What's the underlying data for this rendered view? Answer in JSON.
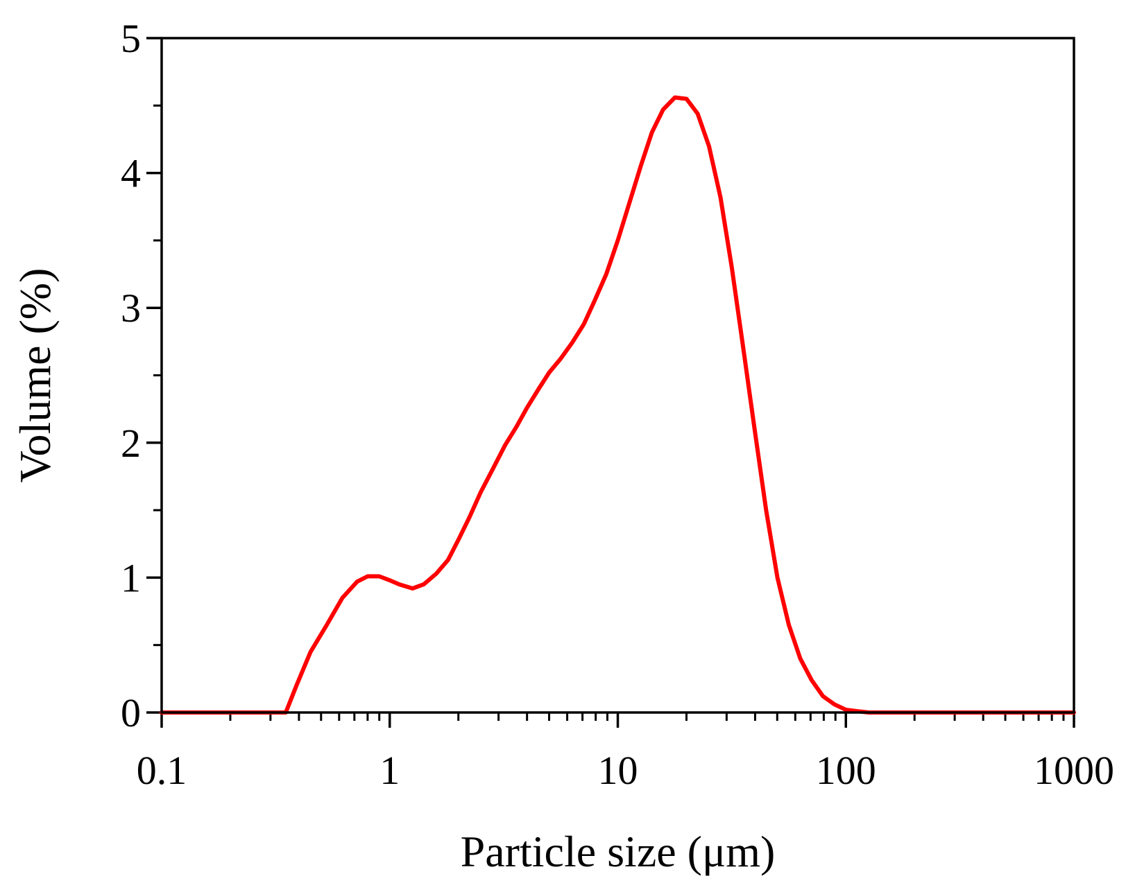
{
  "chart_data": {
    "type": "line",
    "title": "",
    "xlabel": "Particle size (μm)",
    "ylabel": "Volume (%)",
    "xscale": "log",
    "xlim": [
      0.1,
      1000
    ],
    "ylim": [
      0,
      5
    ],
    "xticks": [
      "0.1",
      "1",
      "10",
      "100",
      "1000"
    ],
    "yticks": [
      "0",
      "1",
      "2",
      "3",
      "4",
      "5"
    ],
    "grid": false,
    "legend": "none",
    "series": [
      {
        "color": "#ff0000",
        "x": [
          0.1,
          0.2,
          0.3,
          0.35,
          0.39,
          0.45,
          0.53,
          0.62,
          0.72,
          0.8,
          0.9,
          1.0,
          1.1,
          1.26,
          1.41,
          1.6,
          1.8,
          2.0,
          2.24,
          2.5,
          2.82,
          3.2,
          3.6,
          4.0,
          4.5,
          5.0,
          5.6,
          6.3,
          7.1,
          7.9,
          8.9,
          10.0,
          11.2,
          12.6,
          14.1,
          15.8,
          17.8,
          20.0,
          22.4,
          25.1,
          28.2,
          31.6,
          35.5,
          39.8,
          44.7,
          50.1,
          56.2,
          63.1,
          70.8,
          79.4,
          89.1,
          100,
          112,
          126,
          141,
          200,
          500,
          1000
        ],
        "y": [
          0,
          0,
          0,
          0,
          0.2,
          0.45,
          0.65,
          0.85,
          0.97,
          1.01,
          1.01,
          0.98,
          0.95,
          0.92,
          0.95,
          1.03,
          1.13,
          1.28,
          1.45,
          1.63,
          1.8,
          1.98,
          2.12,
          2.26,
          2.4,
          2.52,
          2.62,
          2.74,
          2.88,
          3.05,
          3.25,
          3.5,
          3.77,
          4.05,
          4.3,
          4.47,
          4.56,
          4.55,
          4.44,
          4.2,
          3.82,
          3.3,
          2.7,
          2.1,
          1.5,
          1.0,
          0.65,
          0.4,
          0.24,
          0.12,
          0.06,
          0.02,
          0.01,
          0,
          0,
          0,
          0,
          0
        ]
      }
    ]
  }
}
